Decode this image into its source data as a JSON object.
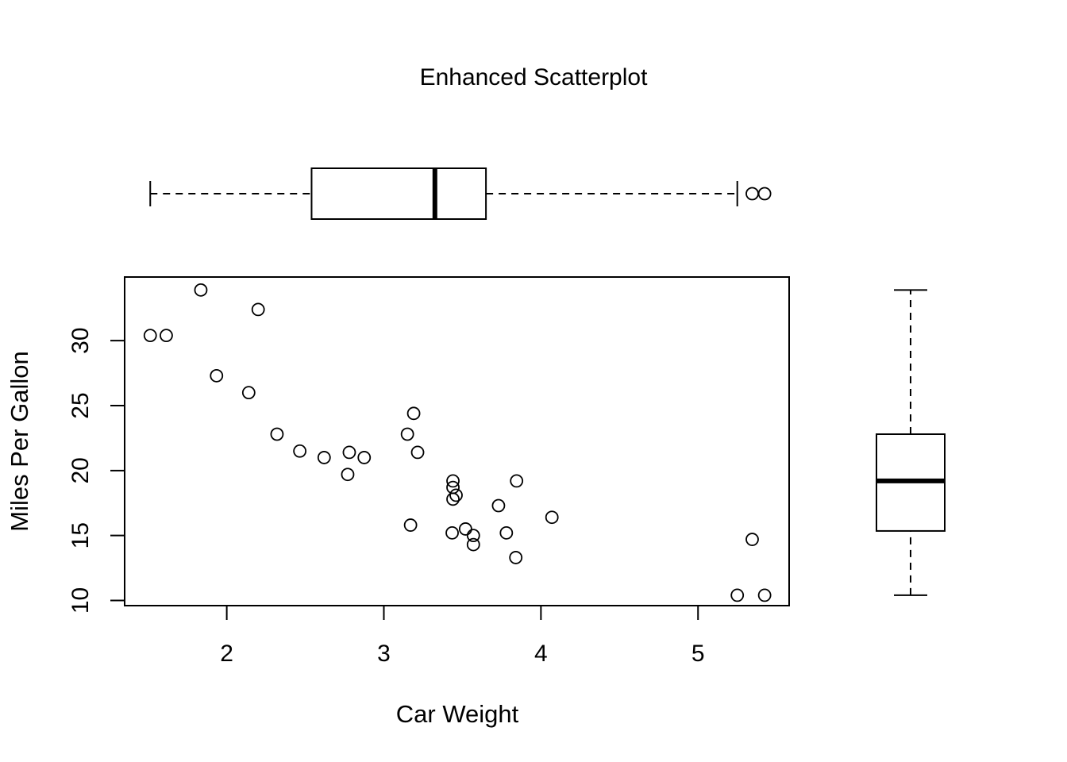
{
  "chart_data": {
    "type": "scatter",
    "title": "Enhanced Scatterplot",
    "xlabel": "Car Weight",
    "ylabel": "Miles Per Gallon",
    "xlim": [
      1.35,
      5.58
    ],
    "ylim": [
      9.6,
      34.9
    ],
    "x_ticks": [
      2,
      3,
      4,
      5
    ],
    "y_ticks": [
      10,
      15,
      20,
      25,
      30
    ],
    "marker": "open-circle",
    "grid": false,
    "points": [
      {
        "x": 2.62,
        "y": 21.0
      },
      {
        "x": 2.875,
        "y": 21.0
      },
      {
        "x": 2.32,
        "y": 22.8
      },
      {
        "x": 3.215,
        "y": 21.4
      },
      {
        "x": 3.44,
        "y": 18.7
      },
      {
        "x": 3.46,
        "y": 18.1
      },
      {
        "x": 3.57,
        "y": 14.3
      },
      {
        "x": 3.19,
        "y": 24.4
      },
      {
        "x": 3.15,
        "y": 22.8
      },
      {
        "x": 3.44,
        "y": 19.2
      },
      {
        "x": 3.44,
        "y": 17.8
      },
      {
        "x": 4.07,
        "y": 16.4
      },
      {
        "x": 3.73,
        "y": 17.3
      },
      {
        "x": 3.78,
        "y": 15.2
      },
      {
        "x": 5.25,
        "y": 10.4
      },
      {
        "x": 5.424,
        "y": 10.4
      },
      {
        "x": 5.345,
        "y": 14.7
      },
      {
        "x": 2.2,
        "y": 32.4
      },
      {
        "x": 1.615,
        "y": 30.4
      },
      {
        "x": 1.835,
        "y": 33.9
      },
      {
        "x": 2.465,
        "y": 21.5
      },
      {
        "x": 3.52,
        "y": 15.5
      },
      {
        "x": 3.435,
        "y": 15.2
      },
      {
        "x": 3.84,
        "y": 13.3
      },
      {
        "x": 3.845,
        "y": 19.2
      },
      {
        "x": 1.935,
        "y": 27.3
      },
      {
        "x": 2.14,
        "y": 26.0
      },
      {
        "x": 1.513,
        "y": 30.4
      },
      {
        "x": 3.17,
        "y": 15.8
      },
      {
        "x": 2.77,
        "y": 19.7
      },
      {
        "x": 3.57,
        "y": 15.0
      },
      {
        "x": 2.78,
        "y": 21.4
      }
    ],
    "boxplot_x": {
      "whisker_low": 1.513,
      "q1": 2.54,
      "median": 3.325,
      "q3": 3.65,
      "whisker_high": 5.25,
      "outliers": [
        5.345,
        5.424
      ]
    },
    "boxplot_y": {
      "whisker_low": 10.4,
      "q1": 15.35,
      "median": 19.2,
      "q3": 22.8,
      "whisker_high": 33.9,
      "outliers": []
    }
  }
}
